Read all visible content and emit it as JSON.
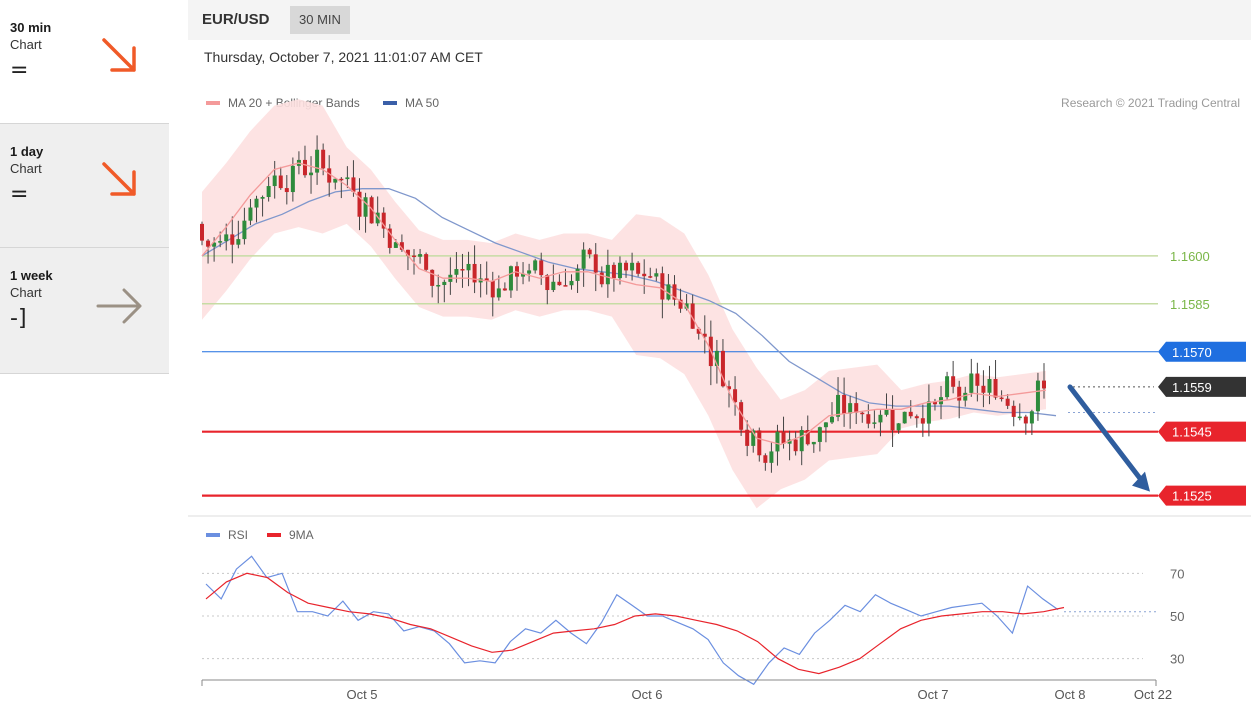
{
  "sidebar": {
    "items": [
      {
        "title": "30 min",
        "subtitle": "Chart",
        "symbol": "=",
        "direction": "down",
        "color": "#f05a28"
      },
      {
        "title": "1 day",
        "subtitle": "Chart",
        "symbol": "=",
        "direction": "down",
        "color": "#f05a28"
      },
      {
        "title": "1 week",
        "subtitle": "Chart",
        "symbol": "-]",
        "direction": "right",
        "color": "#9b9185"
      }
    ]
  },
  "header": {
    "symbol": "EUR/USD",
    "timeframe": "30 MIN"
  },
  "datetime": "Thursday, October 7, 2021 11:01:07 AM CET",
  "legend": {
    "ma20": "MA 20 + Bollinger Bands",
    "ma50": "MA 50"
  },
  "credit": "Research © 2021 Trading Central",
  "rsi_legend": {
    "rsi": "RSI",
    "ma9": "9MA"
  },
  "colors": {
    "up": "#2e8b3c",
    "down": "#c9262b",
    "ma20": "#f49a9a",
    "ma50": "#3a5fa8",
    "band": "#fde0e0",
    "green_level": "#7ab648",
    "blue_level": "#1f6fe0",
    "red_level": "#e8242c",
    "last_price": "#333333",
    "rsi": "#6b8fe0",
    "rsi_ma": "#e8242c"
  },
  "chart_data": [
    {
      "type": "line",
      "title": "EUR/USD",
      "xlabel": "",
      "ylabel": "",
      "x_ticks": [
        "Oct 5",
        "Oct 6",
        "Oct 7",
        "Oct 8",
        "Oct 22"
      ],
      "ylim": [
        1.1518,
        1.1645
      ],
      "levels": [
        {
          "label": "1.1600",
          "value": 1.16,
          "kind": "green"
        },
        {
          "label": "1.1585",
          "value": 1.1585,
          "kind": "green"
        },
        {
          "label": "1.1570",
          "value": 1.157,
          "kind": "blue"
        },
        {
          "label": "1.1559",
          "value": 1.1559,
          "kind": "last"
        },
        {
          "label": "1.1545",
          "value": 1.1545,
          "kind": "red"
        },
        {
          "label": "1.1525",
          "value": 1.1525,
          "kind": "red"
        }
      ],
      "series": [
        {
          "name": "MA 20 + Bollinger Bands",
          "values": [
            1.16,
            1.1609,
            1.1619,
            1.1627,
            1.1629,
            1.1627,
            1.1622,
            1.1615,
            1.1605,
            1.1596,
            1.1593,
            1.1593,
            1.1592,
            1.1595,
            1.1593,
            1.1595,
            1.1595,
            1.1593,
            1.1591,
            1.159,
            1.1585,
            1.1572,
            1.1555,
            1.1543,
            1.1541,
            1.1544,
            1.155,
            1.1551,
            1.1552,
            1.1552,
            1.1554,
            1.1555,
            1.1557,
            1.1556,
            1.1557,
            1.1558
          ]
        },
        {
          "name": "MA 50",
          "values": [
            1.16,
            1.1605,
            1.161,
            1.1613,
            1.1617,
            1.162,
            1.1621,
            1.1621,
            1.1618,
            1.1612,
            1.1608,
            1.1604,
            1.1601,
            1.1598,
            1.1596,
            1.1595,
            1.1594,
            1.1592,
            1.1589,
            1.1586,
            1.1582,
            1.1575,
            1.1567,
            1.1562,
            1.1557,
            1.1554,
            1.1553,
            1.1553,
            1.1553,
            1.1552,
            1.1551,
            1.1551,
            1.155
          ]
        }
      ],
      "forecast": {
        "from": 1.1559,
        "to": 1.1525
      }
    },
    {
      "type": "line",
      "title": "RSI",
      "ylim": [
        20,
        80
      ],
      "y_ticks": [
        70,
        50,
        30
      ],
      "series": [
        {
          "name": "RSI",
          "values": [
            65,
            58,
            72,
            78,
            68,
            70,
            52,
            52,
            50,
            57,
            48,
            52,
            51,
            43,
            45,
            43,
            37,
            28,
            29,
            28,
            38,
            44,
            42,
            48,
            42,
            37,
            47,
            60,
            55,
            50,
            50,
            47,
            44,
            39,
            28,
            22,
            18,
            28,
            35,
            32,
            42,
            48,
            55,
            52,
            60,
            56,
            53,
            50,
            52,
            54,
            55,
            56,
            50,
            42,
            64,
            58,
            53
          ]
        },
        {
          "name": "9MA",
          "values": [
            58,
            66,
            70,
            68,
            61,
            56,
            54,
            52,
            51,
            49,
            46,
            44,
            40,
            36,
            33,
            34,
            38,
            42,
            43,
            44,
            46,
            50,
            51,
            50,
            48,
            46,
            43,
            38,
            30,
            25,
            23,
            26,
            30,
            37,
            44,
            48,
            50,
            51,
            52,
            52,
            51,
            52,
            54
          ]
        }
      ]
    }
  ]
}
